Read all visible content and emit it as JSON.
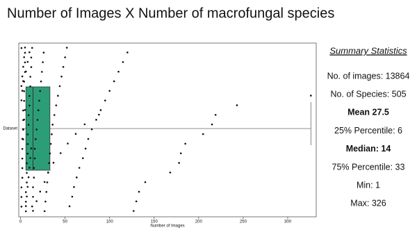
{
  "chart_data": {
    "type": "box",
    "title": "Number of Images X Number of macrofungal species",
    "xlabel": "Number of Images",
    "categories": [
      "Dataset"
    ],
    "box": {
      "whislo": 1,
      "q1": 6,
      "med": 14,
      "q3": 33,
      "whishi": 326
    },
    "color": "#2b9e78",
    "point_color": "#111111",
    "points": [
      1,
      1,
      1,
      1,
      2,
      2,
      2,
      2,
      3,
      3,
      3,
      3,
      4,
      4,
      4,
      5,
      5,
      5,
      6,
      6,
      6,
      7,
      7,
      7,
      8,
      8,
      8,
      9,
      9,
      10,
      10,
      11,
      11,
      12,
      12,
      13,
      13,
      14,
      14,
      15,
      15,
      16,
      16,
      17,
      18,
      19,
      20,
      21,
      22,
      23,
      24,
      25,
      26,
      27,
      28,
      29,
      30,
      31,
      32,
      33,
      34,
      35,
      36,
      38,
      40,
      42,
      44,
      46,
      48,
      50,
      52,
      55,
      58,
      60,
      63,
      66,
      70,
      73,
      76,
      80,
      85,
      90,
      95,
      100,
      105,
      110,
      115,
      120,
      127,
      130,
      133,
      140,
      168,
      178,
      180,
      185,
      205,
      215,
      219,
      243,
      326,
      1,
      2,
      3,
      4,
      5,
      6,
      7,
      8,
      9,
      10,
      11,
      12,
      2,
      3,
      4,
      5,
      1,
      2,
      3,
      6,
      8,
      10,
      14,
      18,
      22,
      27,
      31,
      37,
      45,
      53,
      62,
      72,
      88
    ],
    "xlim": [
      -2,
      332
    ],
    "xticks": [
      0,
      50,
      100,
      150,
      200,
      250,
      300
    ]
  },
  "summary": {
    "title": "Summary Statistics",
    "lines": [
      {
        "text": "No. of images: 13864",
        "bold": false
      },
      {
        "text": "No. of Species: 505",
        "bold": false
      },
      {
        "text": "Mean 27.5",
        "bold": true
      },
      {
        "text": "25% Percentile: 6",
        "bold": false
      },
      {
        "text": "Median: 14",
        "bold": true
      },
      {
        "text": "75% Percentile: 33",
        "bold": false
      },
      {
        "text": "Min: 1",
        "bold": false
      },
      {
        "text": "Max: 326",
        "bold": false
      }
    ]
  }
}
